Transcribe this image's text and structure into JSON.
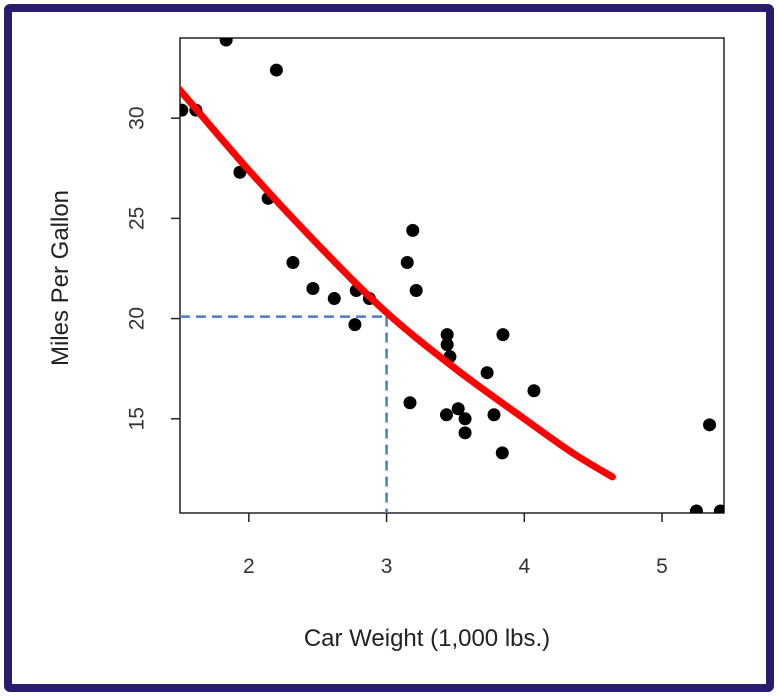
{
  "colors": {
    "frame": "#2b1b6b",
    "points": "#000000",
    "fit_line": "#ff0000",
    "guide": "#4a7cc9"
  },
  "chart_data": {
    "type": "scatter",
    "title": "",
    "xlabel": "Car Weight (1,000 lbs.)",
    "ylabel": "Miles Per Gallon",
    "xlim": [
      1.5,
      5.45
    ],
    "ylim": [
      10.3,
      34.0
    ],
    "x_ticks": [
      2,
      3,
      4,
      5
    ],
    "y_ticks": [
      15,
      20,
      25,
      30
    ],
    "grid": false,
    "points": [
      {
        "x": 1.513,
        "y": 30.4
      },
      {
        "x": 1.615,
        "y": 30.4
      },
      {
        "x": 1.835,
        "y": 33.9
      },
      {
        "x": 1.935,
        "y": 27.3
      },
      {
        "x": 2.14,
        "y": 26.0
      },
      {
        "x": 2.2,
        "y": 32.4
      },
      {
        "x": 2.32,
        "y": 22.8
      },
      {
        "x": 2.465,
        "y": 21.5
      },
      {
        "x": 2.62,
        "y": 21.0
      },
      {
        "x": 2.77,
        "y": 19.7
      },
      {
        "x": 2.78,
        "y": 21.4
      },
      {
        "x": 2.875,
        "y": 21.0
      },
      {
        "x": 3.15,
        "y": 22.8
      },
      {
        "x": 3.17,
        "y": 15.8
      },
      {
        "x": 3.19,
        "y": 24.4
      },
      {
        "x": 3.215,
        "y": 21.4
      },
      {
        "x": 3.435,
        "y": 15.2
      },
      {
        "x": 3.44,
        "y": 18.7
      },
      {
        "x": 3.44,
        "y": 19.2
      },
      {
        "x": 3.46,
        "y": 18.1
      },
      {
        "x": 3.52,
        "y": 15.5
      },
      {
        "x": 3.57,
        "y": 15.0
      },
      {
        "x": 3.57,
        "y": 14.3
      },
      {
        "x": 3.73,
        "y": 17.3
      },
      {
        "x": 3.78,
        "y": 15.2
      },
      {
        "x": 3.84,
        "y": 13.3
      },
      {
        "x": 3.845,
        "y": 19.2
      },
      {
        "x": 4.07,
        "y": 16.4
      },
      {
        "x": 5.25,
        "y": 10.4
      },
      {
        "x": 5.345,
        "y": 14.7
      },
      {
        "x": 5.424,
        "y": 10.4
      }
    ],
    "fit_curve": {
      "label": "fitted curve",
      "x": [
        1.45,
        2.0,
        2.5,
        3.0,
        3.5,
        4.0,
        4.35,
        4.64
      ],
      "y": [
        31.8,
        27.4,
        23.7,
        20.3,
        17.5,
        15.0,
        13.3,
        12.1
      ]
    },
    "annotation": {
      "type": "guide-lines",
      "x": 3.0,
      "y": 20.1
    }
  }
}
